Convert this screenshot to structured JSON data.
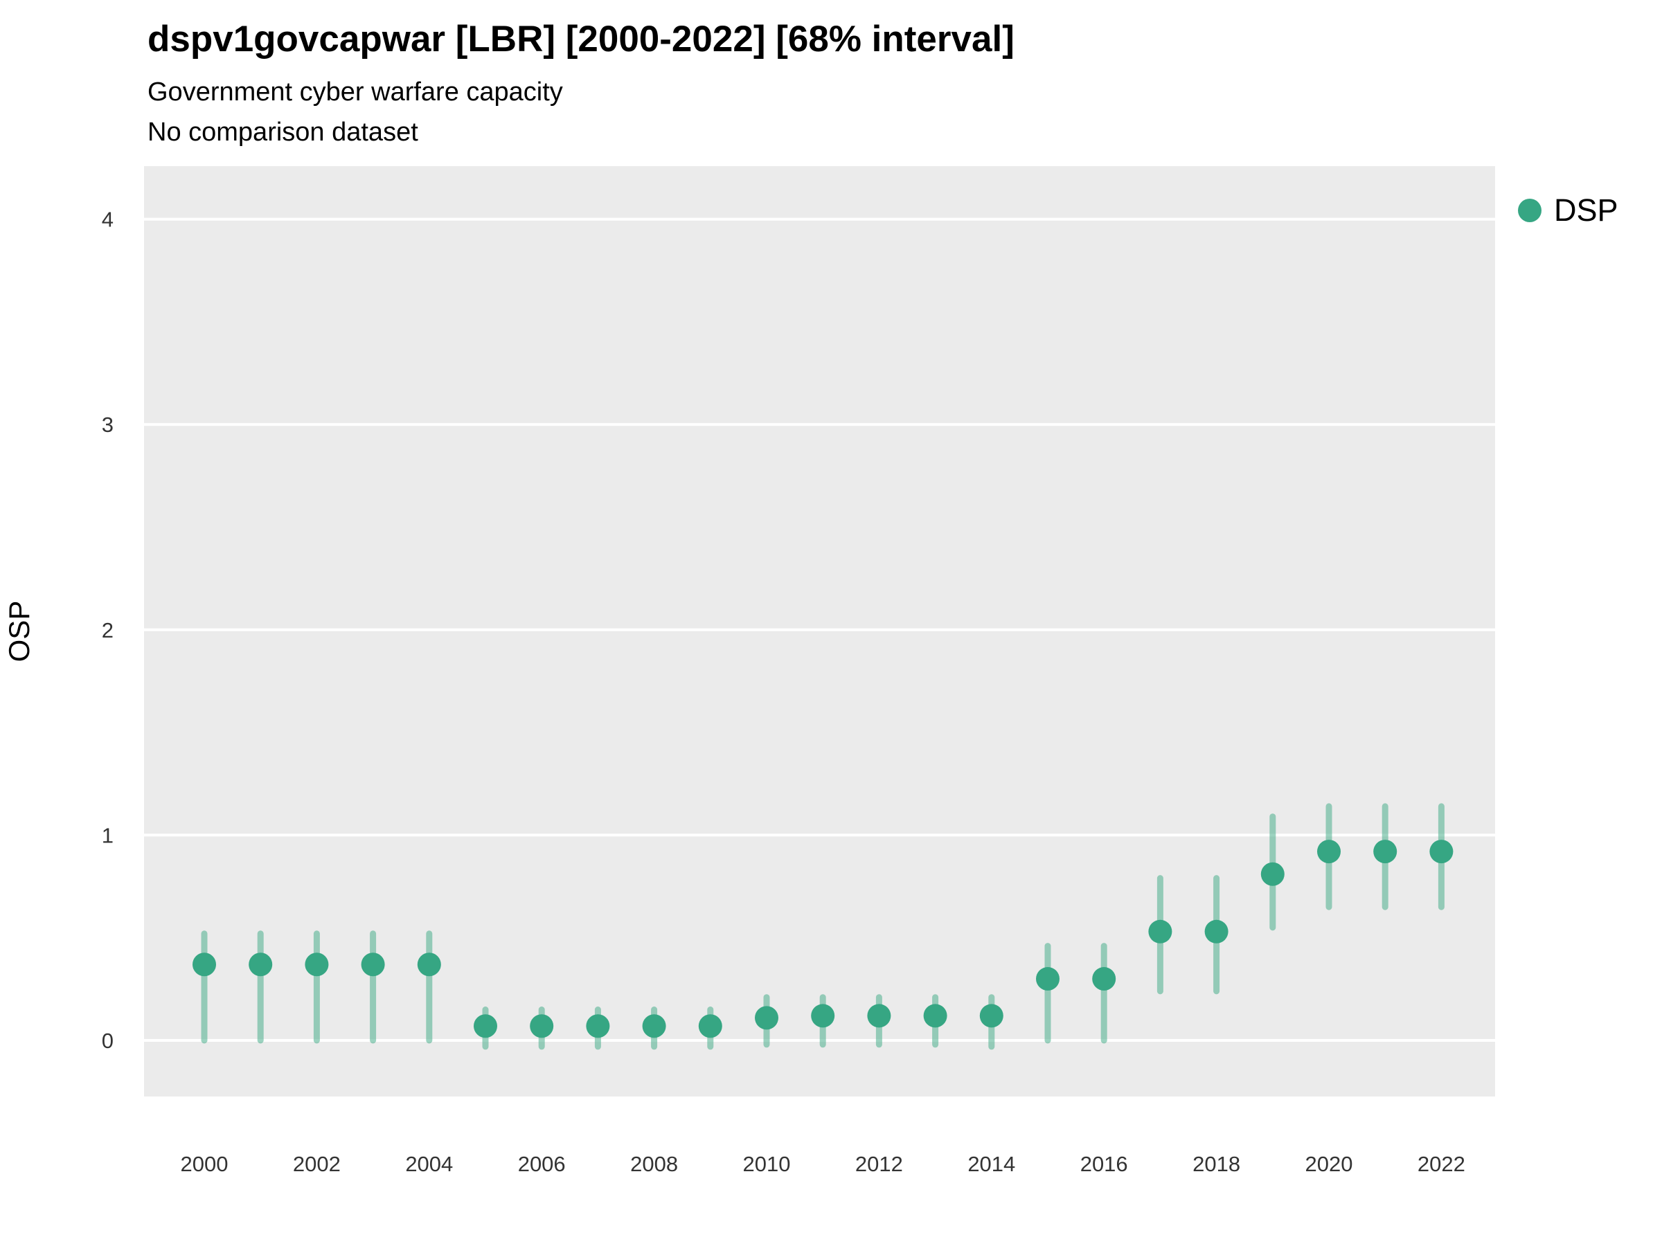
{
  "header": {
    "title": "dspv1govcapwar [LBR] [2000-2022] [68% interval]",
    "subtitle": "Government cyber warfare capacity",
    "comparison_note": "No comparison dataset"
  },
  "legend": {
    "series_label": "DSP"
  },
  "axes": {
    "y_label": "OSP",
    "y_ticks": [
      0,
      1,
      2,
      3,
      4
    ],
    "x_ticks": [
      2000,
      2002,
      2004,
      2006,
      2008,
      2010,
      2012,
      2014,
      2016,
      2018,
      2020,
      2022
    ]
  },
  "colors": {
    "panel": "#ebebeb",
    "grid": "#ffffff",
    "point": "#36a683",
    "interval": "rgba(74, 175, 140, 0.55)",
    "tick_text": "#333333"
  },
  "chart_data": {
    "type": "scatter",
    "title": "dspv1govcapwar [LBR] [2000-2022] [68% interval]",
    "subtitle": "Government cyber warfare capacity",
    "note": "No comparison dataset",
    "xlabel": "",
    "ylabel": "OSP",
    "interval": "68%",
    "xlim": [
      1998.9,
      2023.1
    ],
    "ylim": [
      -0.27,
      4.26
    ],
    "grid": "on",
    "legend_position": "top-right",
    "series": [
      {
        "name": "DSP",
        "points": [
          {
            "year": 2000,
            "value": 0.37,
            "low": 0.0,
            "high": 0.52
          },
          {
            "year": 2001,
            "value": 0.37,
            "low": 0.0,
            "high": 0.52
          },
          {
            "year": 2002,
            "value": 0.37,
            "low": 0.0,
            "high": 0.52
          },
          {
            "year": 2003,
            "value": 0.37,
            "low": 0.0,
            "high": 0.52
          },
          {
            "year": 2004,
            "value": 0.37,
            "low": 0.0,
            "high": 0.52
          },
          {
            "year": 2005,
            "value": 0.07,
            "low": -0.03,
            "high": 0.15
          },
          {
            "year": 2006,
            "value": 0.07,
            "low": -0.03,
            "high": 0.15
          },
          {
            "year": 2007,
            "value": 0.07,
            "low": -0.03,
            "high": 0.15
          },
          {
            "year": 2008,
            "value": 0.07,
            "low": -0.03,
            "high": 0.15
          },
          {
            "year": 2009,
            "value": 0.07,
            "low": -0.03,
            "high": 0.15
          },
          {
            "year": 2010,
            "value": 0.11,
            "low": -0.02,
            "high": 0.21
          },
          {
            "year": 2011,
            "value": 0.12,
            "low": -0.02,
            "high": 0.21
          },
          {
            "year": 2012,
            "value": 0.12,
            "low": -0.02,
            "high": 0.21
          },
          {
            "year": 2013,
            "value": 0.12,
            "low": -0.02,
            "high": 0.21
          },
          {
            "year": 2014,
            "value": 0.12,
            "low": -0.03,
            "high": 0.21
          },
          {
            "year": 2015,
            "value": 0.3,
            "low": 0.0,
            "high": 0.46
          },
          {
            "year": 2016,
            "value": 0.3,
            "low": 0.0,
            "high": 0.46
          },
          {
            "year": 2017,
            "value": 0.53,
            "low": 0.24,
            "high": 0.79
          },
          {
            "year": 2018,
            "value": 0.53,
            "low": 0.24,
            "high": 0.79
          },
          {
            "year": 2019,
            "value": 0.81,
            "low": 0.55,
            "high": 1.09
          },
          {
            "year": 2020,
            "value": 0.92,
            "low": 0.65,
            "high": 1.14
          },
          {
            "year": 2021,
            "value": 0.92,
            "low": 0.65,
            "high": 1.14
          },
          {
            "year": 2022,
            "value": 0.92,
            "low": 0.65,
            "high": 1.14
          }
        ]
      }
    ]
  }
}
